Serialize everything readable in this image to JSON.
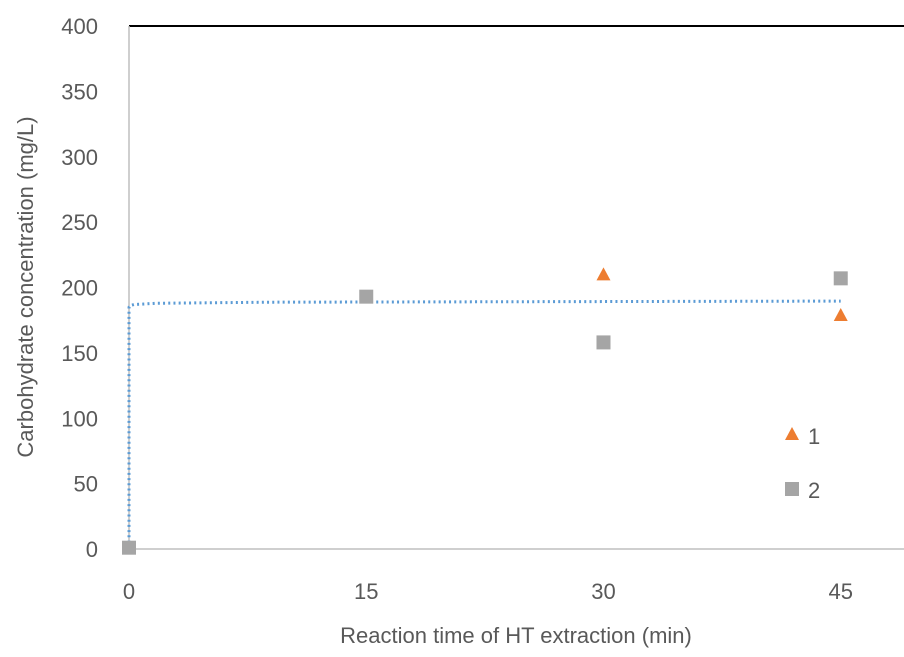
{
  "chart_data": {
    "type": "scatter",
    "xlabel": "Reaction time of HT extraction (min)",
    "ylabel": "Carbohydrate concentration (mg/L)",
    "xlim": [
      0,
      49
    ],
    "ylim": [
      0,
      400
    ],
    "x_ticks": [
      "0",
      "15",
      "30",
      "45"
    ],
    "x_tick_values": [
      0,
      15,
      30,
      45
    ],
    "y_ticks": [
      "0",
      "50",
      "100",
      "150",
      "200",
      "250",
      "300",
      "350",
      "400"
    ],
    "y_tick_values": [
      0,
      50,
      100,
      150,
      200,
      250,
      300,
      350,
      400
    ],
    "grid": false,
    "legend_position": "right",
    "series": [
      {
        "name": "1",
        "marker": "triangle",
        "color": "#ED7D31",
        "x": [
          30,
          45
        ],
        "y": [
          210,
          179
        ]
      },
      {
        "name": "2",
        "marker": "square",
        "color": "#A5A5A5",
        "x": [
          0,
          15,
          30,
          45
        ],
        "y": [
          1,
          193,
          158,
          207
        ]
      }
    ],
    "trendline": {
      "type": "logarithmic",
      "color": "#5B9BD5",
      "style": "dotted"
    }
  }
}
